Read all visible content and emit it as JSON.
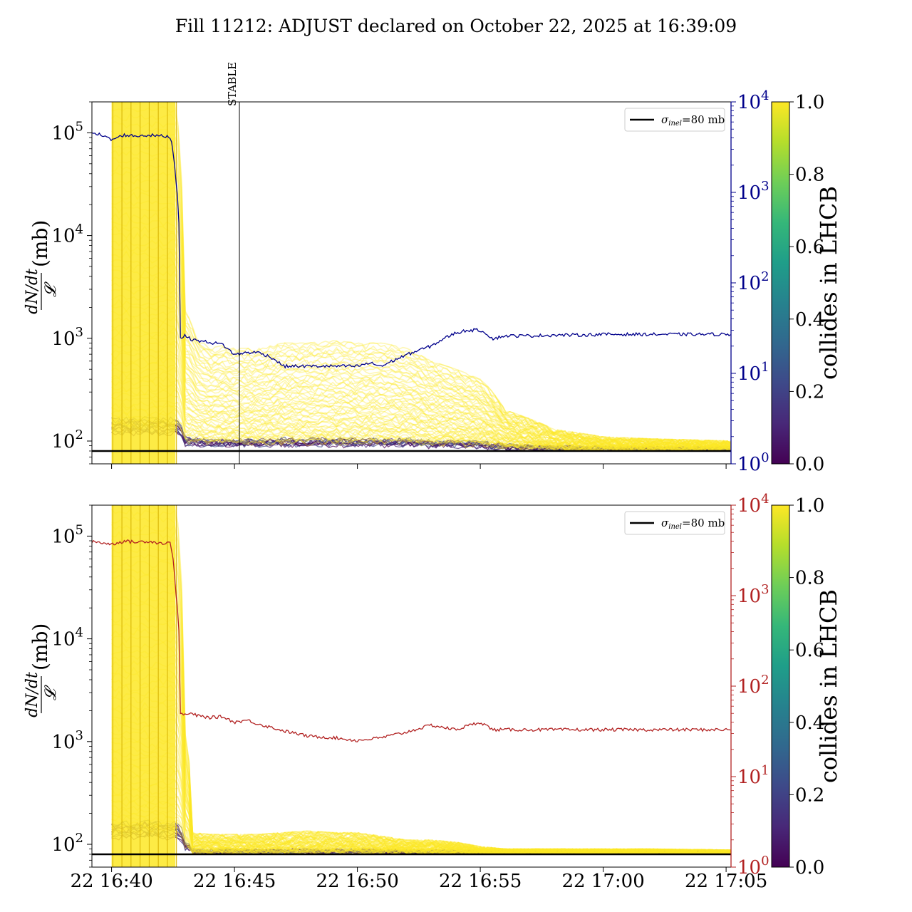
{
  "title": "Fill 11212: ADJUST declared on October 22, 2025 at 16:39:09",
  "colors": {
    "top_rate": "#00008b",
    "bottom_rate": "#b22222",
    "bunch_yellow": "#fde725",
    "bunch_dark": "#440154",
    "sigma_line": "#000000",
    "viridis": [
      "#440154",
      "#482878",
      "#3e4989",
      "#31688e",
      "#26828e",
      "#1f9e89",
      "#35b779",
      "#6ece58",
      "#b5de2b",
      "#fde725"
    ]
  },
  "chart_data": [
    {
      "type": "line",
      "name": "top-panel",
      "scale": "log",
      "ylabel_main": "dN/dt",
      "ylabel_denominator": "𝓛",
      "ylabel_unit": "(mb)",
      "ylim": [
        60,
        200000
      ],
      "y_ticks": [
        {
          "base": "10",
          "exp": "2"
        },
        {
          "base": "10",
          "exp": "3"
        },
        {
          "base": "10",
          "exp": "4"
        },
        {
          "base": "10",
          "exp": "5"
        }
      ],
      "y2_ticks": [
        {
          "base": "10",
          "exp": "0"
        },
        {
          "base": "10",
          "exp": "1"
        },
        {
          "base": "10",
          "exp": "2"
        },
        {
          "base": "10",
          "exp": "3"
        },
        {
          "base": "10",
          "exp": "4"
        }
      ],
      "y2lim": [
        1,
        10000
      ],
      "y2_color": "#00008b",
      "x_tick_labels": [],
      "xlim_minutes": [
        -0.8,
        25.2
      ],
      "annotation": {
        "text": "STABLE",
        "x_minutes": 5.2
      },
      "legend": {
        "label_sigma": "σ",
        "label_sub": "inel",
        "label_value": "=80 mb",
        "position": "upper right"
      },
      "sigma_inel_mb": 80,
      "colorbar": {
        "label": "collides in LHCB",
        "ticks": [
          "0.0",
          "0.2",
          "0.4",
          "0.6",
          "0.8",
          "1.0"
        ]
      },
      "rate_series": {
        "x": [
          -0.8,
          0,
          0.5,
          1,
          1.5,
          2,
          2.4,
          2.6,
          2.8,
          3.0,
          3.2,
          3.5,
          4,
          4.5,
          5,
          5.5,
          6,
          6.5,
          7,
          8,
          9,
          10,
          10.5,
          11,
          11.5,
          12,
          12.5,
          13,
          13.5,
          14,
          14.5,
          15,
          15.3,
          15.5,
          16,
          17,
          18,
          19,
          20,
          21,
          22,
          23,
          24,
          25.2
        ],
        "y": [
          4700,
          3800,
          4300,
          4200,
          4300,
          4200,
          4100,
          1500,
          25,
          26,
          24,
          23,
          22,
          21,
          16,
          17,
          17,
          15,
          12,
          12,
          12,
          12,
          13,
          12,
          14,
          16,
          18,
          20,
          24,
          28,
          30,
          30,
          27,
          24,
          26,
          26,
          26.5,
          26.5,
          27,
          27,
          27,
          27,
          27,
          27
        ]
      },
      "bunch_envelope": {
        "x": [
          0,
          2.6,
          2.9,
          3.5,
          4,
          4.5,
          5,
          6,
          7,
          8,
          9,
          10,
          11,
          12,
          13,
          14,
          15,
          16,
          18,
          20,
          22,
          25.2
        ],
        "y_high": [
          200000,
          200000,
          2000,
          1000,
          800,
          850,
          800,
          800,
          900,
          900,
          950,
          900,
          900,
          800,
          600,
          500,
          400,
          200,
          130,
          110,
          105,
          100
        ],
        "y_low": [
          80,
          80,
          80,
          82,
          82,
          82,
          82,
          82,
          82,
          82,
          82,
          82,
          82,
          82,
          82,
          82,
          82,
          82,
          82,
          82,
          82,
          82
        ]
      }
    },
    {
      "type": "line",
      "name": "bottom-panel",
      "scale": "log",
      "ylabel_main": "dN/dt",
      "ylabel_denominator": "𝓛",
      "ylabel_unit": "(mb)",
      "ylim": [
        60,
        200000
      ],
      "y_ticks": [
        {
          "base": "10",
          "exp": "2"
        },
        {
          "base": "10",
          "exp": "3"
        },
        {
          "base": "10",
          "exp": "4"
        },
        {
          "base": "10",
          "exp": "5"
        }
      ],
      "y2_ticks": [
        {
          "base": "10",
          "exp": "0"
        },
        {
          "base": "10",
          "exp": "1"
        },
        {
          "base": "10",
          "exp": "2"
        },
        {
          "base": "10",
          "exp": "3"
        },
        {
          "base": "10",
          "exp": "4"
        }
      ],
      "y2lim": [
        1,
        10000
      ],
      "y2_color": "#b22222",
      "x_tick_labels": [
        "22 16:40",
        "22 16:45",
        "22 16:50",
        "22 16:55",
        "22 17:00",
        "22 17:05"
      ],
      "x_tick_minutes": [
        0,
        5,
        10,
        15,
        20,
        25
      ],
      "xlim_minutes": [
        -0.8,
        25.2
      ],
      "legend": {
        "label_sigma": "σ",
        "label_sub": "inel",
        "label_value": "=80 mb",
        "position": "upper right"
      },
      "sigma_inel_mb": 80,
      "colorbar": {
        "label": "collides in LHCB",
        "ticks": [
          "0.0",
          "0.2",
          "0.4",
          "0.6",
          "0.8",
          "1.0"
        ]
      },
      "rate_series": {
        "x": [
          -0.8,
          0,
          0.5,
          1,
          1.5,
          2,
          2.4,
          2.6,
          2.8,
          3.0,
          3.2,
          3.5,
          4,
          4.5,
          5,
          5.5,
          6,
          7,
          8,
          9,
          10,
          11,
          12,
          13,
          14,
          15,
          15.5,
          16,
          18,
          20,
          22,
          25.2
        ],
        "y": [
          4000,
          3700,
          4000,
          3900,
          4000,
          3800,
          3800,
          1200,
          50,
          48,
          50,
          47,
          45,
          46,
          40,
          42,
          38,
          32,
          28,
          27,
          25,
          27,
          31,
          37,
          33,
          40,
          33,
          33,
          33,
          33,
          33,
          33
        ]
      },
      "bunch_envelope": {
        "x": [
          0,
          2.6,
          2.9,
          3.3,
          4,
          5,
          6,
          7,
          8,
          9,
          10,
          11,
          12,
          13,
          14,
          15,
          16,
          18,
          20,
          22,
          25.2
        ],
        "y_high": [
          200000,
          200000,
          1500,
          130,
          125,
          125,
          125,
          130,
          135,
          130,
          130,
          120,
          110,
          110,
          105,
          95,
          90,
          90,
          90,
          90,
          88
        ],
        "y_low": [
          80,
          80,
          80,
          82,
          82,
          82,
          82,
          82,
          82,
          82,
          82,
          82,
          82,
          82,
          82,
          82,
          82,
          82,
          82,
          82,
          82
        ]
      }
    }
  ]
}
